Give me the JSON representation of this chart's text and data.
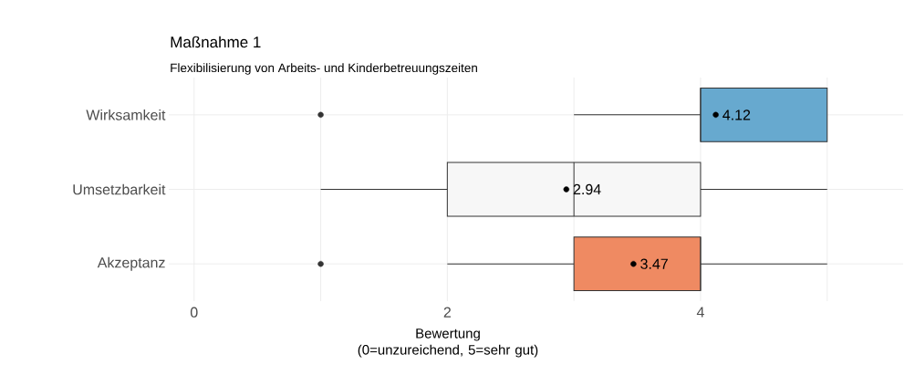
{
  "chart_data": {
    "type": "box",
    "orientation": "horizontal",
    "title": "Maßnahme 1",
    "subtitle": "Flexibilisierung von Arbeits- und Kinderbetreuungszeiten",
    "xlabel": "Bewertung (0=unzureichend, 5=sehr gut)",
    "categories": [
      "Wirksamkeit",
      "Umsetzbarkeit",
      "Akzeptanz"
    ],
    "colors": [
      "#67a9cf",
      "#f7f7f7",
      "#ef8a62"
    ],
    "boxes": [
      {
        "low": 3,
        "q1": 4,
        "median": 4,
        "q3": 5,
        "high": 5,
        "mean": 4.12,
        "outliers": [
          1
        ]
      },
      {
        "low": 1,
        "q1": 2,
        "median": 3,
        "q3": 4,
        "high": 5,
        "mean": 2.94
      },
      {
        "low": 2,
        "q1": 3,
        "median": 4,
        "q3": 4,
        "high": 5,
        "mean": 3.47,
        "outliers": [
          1
        ]
      }
    ],
    "annotations": [
      "4.12",
      "2.94",
      "3.47"
    ],
    "xlim": [
      -0.2,
      5.6
    ],
    "xticks": [
      0,
      {
        "value": 1,
        "label": null
      },
      2,
      {
        "value": 3,
        "label": null
      },
      4,
      {
        "value": 5,
        "label": null
      }
    ],
    "grid": true
  }
}
